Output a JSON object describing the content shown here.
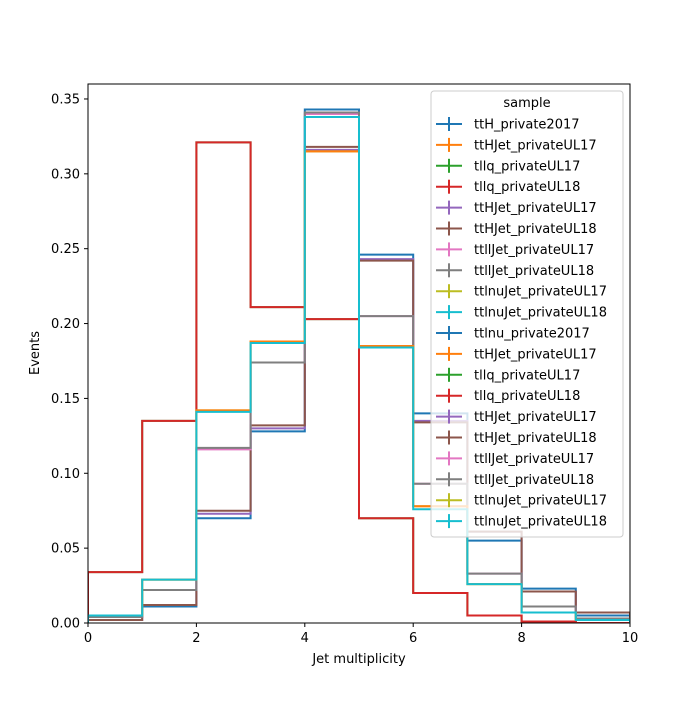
{
  "chart_data": {
    "type": "step-histogram",
    "xlabel": "Jet multiplicity",
    "ylabel": "Events",
    "xlim": [
      0,
      10
    ],
    "ylim": [
      0,
      0.36
    ],
    "x_ticks": [
      0,
      2,
      4,
      6,
      8,
      10
    ],
    "y_ticks": [
      0.0,
      0.05,
      0.1,
      0.15,
      0.2,
      0.25,
      0.3,
      0.35
    ],
    "y_tick_labels": [
      "0.00",
      "0.05",
      "0.10",
      "0.15",
      "0.20",
      "0.25",
      "0.30",
      "0.35"
    ],
    "bin_edges": [
      0,
      1,
      2,
      3,
      4,
      5,
      6,
      7,
      8,
      9,
      10
    ],
    "legend": {
      "title": "sample",
      "placement": "upper right",
      "entries": [
        {
          "label": "ttH_private2017",
          "color": "#1f77b4"
        },
        {
          "label": "ttHJet_privateUL17",
          "color": "#ff7f0e"
        },
        {
          "label": "tllq_privateUL17",
          "color": "#2ca02c"
        },
        {
          "label": "tllq_privateUL18",
          "color": "#d62728"
        },
        {
          "label": "ttHJet_privateUL17",
          "color": "#9467bd"
        },
        {
          "label": "ttHJet_privateUL18",
          "color": "#8c564b"
        },
        {
          "label": "ttllJet_privateUL17",
          "color": "#e377c2"
        },
        {
          "label": "ttllJet_privateUL18",
          "color": "#7f7f7f"
        },
        {
          "label": "ttlnuJet_privateUL17",
          "color": "#bcbd22"
        },
        {
          "label": "ttlnuJet_privateUL18",
          "color": "#17becf"
        },
        {
          "label": "ttlnu_private2017",
          "color": "#1f77b4"
        },
        {
          "label": "ttHJet_privateUL17",
          "color": "#ff7f0e"
        },
        {
          "label": "tllq_privateUL17",
          "color": "#2ca02c"
        },
        {
          "label": "tllq_privateUL18",
          "color": "#d62728"
        },
        {
          "label": "ttHJet_privateUL17",
          "color": "#9467bd"
        },
        {
          "label": "ttHJet_privateUL18",
          "color": "#8c564b"
        },
        {
          "label": "ttllJet_privateUL17",
          "color": "#e377c2"
        },
        {
          "label": "ttllJet_privateUL18",
          "color": "#7f7f7f"
        },
        {
          "label": "ttlnuJet_privateUL17",
          "color": "#bcbd22"
        },
        {
          "label": "ttlnuJet_privateUL18",
          "color": "#17becf"
        }
      ]
    },
    "series": [
      {
        "color": "#1f77b4",
        "values": [
          0.004,
          0.011,
          0.07,
          0.128,
          0.343,
          0.246,
          0.14,
          0.055,
          0.023,
          0.005
        ]
      },
      {
        "color": "#2ca02c",
        "values": [
          0.034,
          0.135,
          0.321,
          0.211,
          0.203,
          0.07,
          0.02,
          0.005,
          0.001,
          0.0
        ]
      },
      {
        "color": "#d62728",
        "values": [
          0.034,
          0.135,
          0.321,
          0.211,
          0.203,
          0.07,
          0.02,
          0.005,
          0.001,
          0.0
        ]
      },
      {
        "color": "#9467bd",
        "values": [
          0.002,
          0.012,
          0.073,
          0.13,
          0.316,
          0.243,
          0.135,
          0.061,
          0.021,
          0.007
        ]
      },
      {
        "color": "#8c564b",
        "values": [
          0.002,
          0.012,
          0.075,
          0.132,
          0.318,
          0.242,
          0.134,
          0.061,
          0.021,
          0.007
        ]
      },
      {
        "color": "#e377c2",
        "values": [
          0.004,
          0.022,
          0.116,
          0.174,
          0.34,
          0.205,
          0.093,
          0.033,
          0.011,
          0.003
        ]
      },
      {
        "color": "#7f7f7f",
        "values": [
          0.004,
          0.022,
          0.117,
          0.174,
          0.341,
          0.205,
          0.093,
          0.033,
          0.011,
          0.003
        ]
      },
      {
        "color": "#bcbd22",
        "values": [
          0.005,
          0.029,
          0.142,
          0.188,
          0.315,
          0.185,
          0.078,
          0.026,
          0.007,
          0.002
        ]
      },
      {
        "color": "#ff7f0e",
        "values": [
          0.005,
          0.029,
          0.142,
          0.188,
          0.315,
          0.185,
          0.078,
          0.026,
          0.007,
          0.002
        ]
      },
      {
        "color": "#17becf",
        "values": [
          0.005,
          0.029,
          0.141,
          0.187,
          0.338,
          0.184,
          0.076,
          0.026,
          0.007,
          0.002
        ]
      }
    ]
  }
}
